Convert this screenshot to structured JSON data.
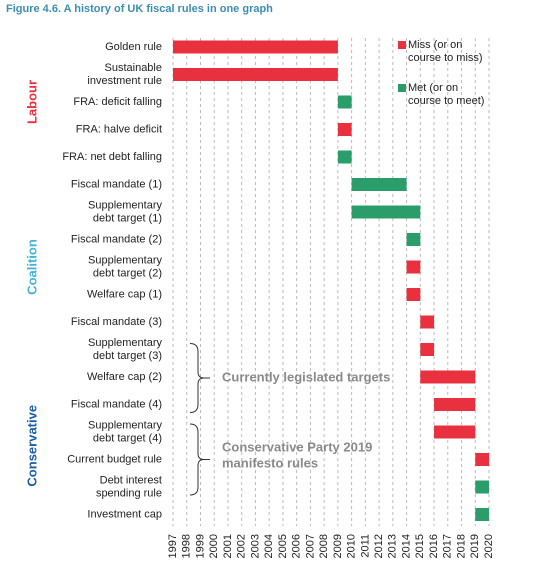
{
  "chart_data": {
    "type": "gantt",
    "title": "Figure 4.6. A history of UK fiscal rules in one graph",
    "xlim": [
      1997,
      2020
    ],
    "xticks": [
      1997,
      1998,
      1999,
      2000,
      2001,
      2002,
      2003,
      2004,
      2005,
      2006,
      2007,
      2008,
      2009,
      2010,
      2011,
      2012,
      2013,
      2014,
      2015,
      2016,
      2017,
      2018,
      2019,
      2020
    ],
    "grid": true,
    "legend": {
      "miss": {
        "label": "Miss (or on\ncourse to miss)",
        "color": "#e8303f"
      },
      "met": {
        "label": "Met (or on\ncourse to meet)",
        "color": "#2a9d6b"
      }
    },
    "groups": [
      {
        "name": "Labour",
        "color": "#e8303f",
        "rules": [
          {
            "label": "Golden rule",
            "start": 1997,
            "end": 2009,
            "status": "miss"
          },
          {
            "label": "Sustainable\ninvestment rule",
            "start": 1997,
            "end": 2009,
            "status": "miss"
          },
          {
            "label": "FRA: deficit falling",
            "start": 2009,
            "end": 2010,
            "status": "met"
          },
          {
            "label": "FRA: halve deficit",
            "start": 2009,
            "end": 2010,
            "status": "miss"
          },
          {
            "label": "FRA: net debt falling",
            "start": 2009,
            "end": 2010,
            "status": "met"
          }
        ]
      },
      {
        "name": "Coalition",
        "color": "#45b3d8",
        "rules": [
          {
            "label": "Fiscal mandate (1)",
            "start": 2010,
            "end": 2014,
            "status": "met"
          },
          {
            "label": "Supplementary\ndebt target (1)",
            "start": 2010,
            "end": 2015,
            "status": "met"
          },
          {
            "label": "Fiscal mandate (2)",
            "start": 2014,
            "end": 2015,
            "status": "met"
          },
          {
            "label": "Supplementary\ndebt target (2)",
            "start": 2014,
            "end": 2015,
            "status": "miss"
          },
          {
            "label": "Welfare cap (1)",
            "start": 2014,
            "end": 2015,
            "status": "miss"
          },
          {
            "label": "Fiscal mandate (3)",
            "start": 2015,
            "end": 2016,
            "status": "miss"
          },
          {
            "label": "Supplementary\ndebt target (3)",
            "start": 2015,
            "end": 2016,
            "status": "miss"
          }
        ]
      },
      {
        "name": "Conservative",
        "color": "#1a5ea8",
        "rules": [
          {
            "label": "Welfare cap (2)",
            "start": 2015,
            "end": 2019,
            "status": "miss"
          },
          {
            "label": "Fiscal mandate (4)",
            "start": 2016,
            "end": 2019,
            "status": "miss"
          },
          {
            "label": "Supplementary\ndebt target (4)",
            "start": 2016,
            "end": 2019,
            "status": "miss"
          },
          {
            "label": "Current budget rule",
            "start": 2019,
            "end": 2020,
            "status": "miss"
          },
          {
            "label": "Debt interest\nspending rule",
            "start": 2019,
            "end": 2020,
            "status": "met"
          },
          {
            "label": "Investment cap",
            "start": 2019,
            "end": 2020,
            "status": "met"
          }
        ]
      }
    ],
    "annotations": [
      "Currently legislated targets",
      "Conservative Party 2019\nmanifesto rules"
    ]
  }
}
